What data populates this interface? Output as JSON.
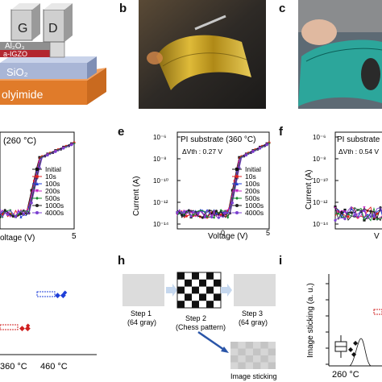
{
  "figure": {
    "panel_letters": {
      "b": "b",
      "c": "c",
      "e": "e",
      "f": "f",
      "h": "h",
      "i": "i"
    },
    "colors": {
      "initial": "#111111",
      "10s": "#e02020",
      "100s": "#1f3fd8",
      "200s": "#c020c0",
      "500s": "#138a2a",
      "1000s": "#222222",
      "4000s": "#7a3fd0",
      "polyimide": "#e07b2a",
      "sio2": "#a9b6d6",
      "igzo": "#b3262f"
    }
  },
  "panel_a": {
    "gate_label": "G",
    "drain_label": "D",
    "layer_al2o3": "Al₂O₃",
    "layer_igzo": "a-IGZO",
    "layer_sio2": "SiO₂",
    "layer_polyimide": "olyimide"
  },
  "panel_d": {
    "condition": "(260 °C)",
    "xlabel": "oltage (V)",
    "x_tick_right": "5"
  },
  "panel_e": {
    "condition": "PI substrate (360 °C)",
    "delta_vth": "ΔVth : 0.27 V",
    "ylabel": "Current (A)",
    "xlabel": "Voltage (V)",
    "y_ticks": [
      "10⁻⁶",
      "10⁻⁸",
      "10⁻¹⁰",
      "10⁻¹²",
      "10⁻¹⁴"
    ],
    "x_ticks": [
      "0",
      "5"
    ]
  },
  "panel_f": {
    "condition": "PI substrate",
    "delta_vth": "ΔVth : 0.54 V",
    "ylabel": "Current (A)",
    "xlabel": "V",
    "y_ticks": [
      "10⁻⁶",
      "10⁻⁸",
      "10⁻¹⁰",
      "10⁻¹²",
      "10⁻¹⁴"
    ]
  },
  "legend": [
    "Initial",
    "10s",
    "100s",
    "200s",
    "500s",
    "1000s",
    "4000s"
  ],
  "panel_g": {
    "x_ticks": [
      "360 °C",
      "460 °C"
    ]
  },
  "panel_h": {
    "step1": "Step 1",
    "step1_sub": "(64 gray)",
    "step2": "Step 2",
    "step2_sub": "(Chess pattern)",
    "step3": "Step 3",
    "step3_sub": "(64 gray)",
    "result": "Image sticking"
  },
  "panel_i": {
    "ylabel": "Image sticking  (a. u.)",
    "x_tick": "260 °C"
  },
  "chart_data": [
    {
      "type": "line",
      "title": "PI substrate (360 °C)",
      "xlabel": "Voltage (V)",
      "ylabel": "Current (A)",
      "xlim": [
        -5,
        5
      ],
      "ylim_log10": [
        -14,
        -6
      ],
      "y_scale": "log",
      "annotation": "ΔVth : 0.27 V",
      "legend_position": "bottom-right",
      "series": [
        {
          "name": "Initial",
          "vth": 0.5,
          "ion_log": -5.2
        },
        {
          "name": "10s",
          "vth": 0.55,
          "ion_log": -5.2
        },
        {
          "name": "100s",
          "vth": 0.6,
          "ion_log": -5.2
        },
        {
          "name": "200s",
          "vth": 0.65,
          "ion_log": -5.25
        },
        {
          "name": "500s",
          "vth": 0.7,
          "ion_log": -5.25
        },
        {
          "name": "1000s",
          "vth": 0.74,
          "ion_log": -5.3
        },
        {
          "name": "4000s",
          "vth": 0.77,
          "ion_log": -5.3
        }
      ]
    },
    {
      "type": "line",
      "title": "PI substrate",
      "xlabel": "V",
      "ylabel": "Current (A)",
      "ylim_log10": [
        -14,
        -6
      ],
      "y_scale": "log",
      "annotation": "ΔVth : 0.54 V",
      "series": [
        {
          "name": "Initial",
          "vth": 0.4
        },
        {
          "name": "4000s",
          "vth": 0.94
        }
      ]
    }
  ]
}
